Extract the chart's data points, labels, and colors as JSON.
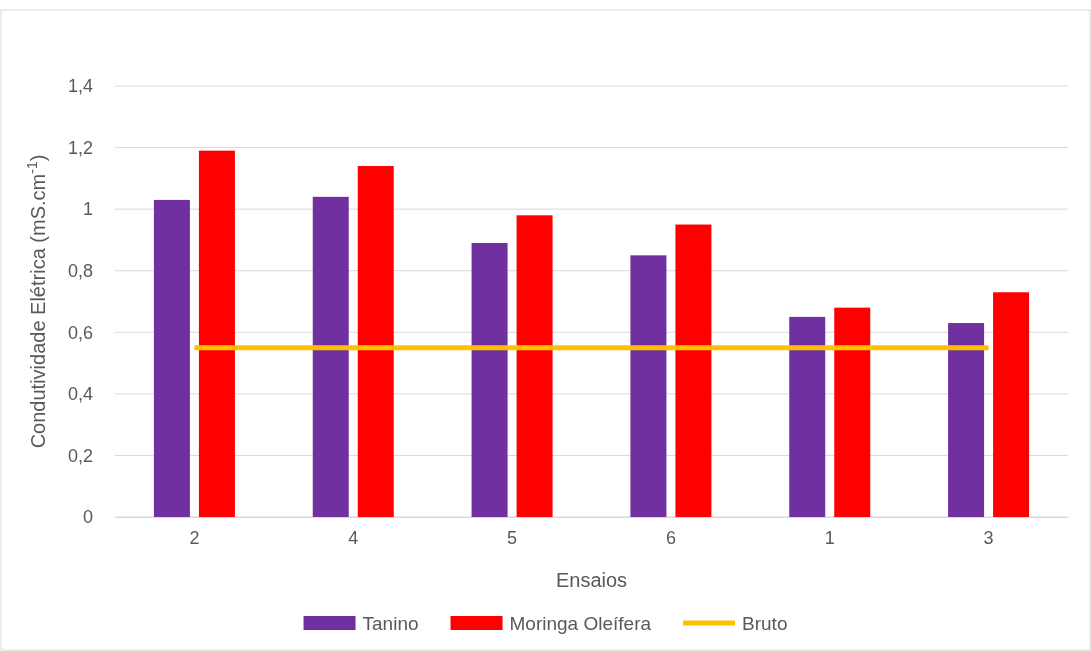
{
  "chart_data": {
    "type": "bar",
    "xlabel": "Ensaios",
    "ylabel": "Condutividade Elétrica (mS.cm$^{-1}$)",
    "categories": [
      "2",
      "4",
      "5",
      "6",
      "1",
      "3"
    ],
    "series": [
      {
        "name": "Tanino",
        "color": "#7030a0",
        "values": [
          1.03,
          1.04,
          0.89,
          0.85,
          0.65,
          0.63
        ]
      },
      {
        "name": "Moringa Oleífera",
        "color": "#ff0000",
        "values": [
          1.19,
          1.14,
          0.98,
          0.95,
          0.68,
          0.73
        ]
      },
      {
        "name": "Bruto",
        "type": "line",
        "color": "#ffc000",
        "values": [
          0.55,
          0.55,
          0.55,
          0.55,
          0.55,
          0.55
        ]
      }
    ],
    "ylim": [
      0,
      1.4
    ],
    "yticks": [
      0,
      {
        "value": 0.2,
        "label": "0,2"
      },
      {
        "value": 0.4,
        "label": "0,4"
      },
      {
        "value": 0.6,
        "label": "0,6"
      },
      {
        "value": 0.8,
        "label": "0,8"
      },
      1,
      {
        "value": 1.2,
        "label": "1,2"
      },
      {
        "value": 1.4,
        "label": "1,4"
      }
    ],
    "grid": "y",
    "legend": "bottom"
  }
}
